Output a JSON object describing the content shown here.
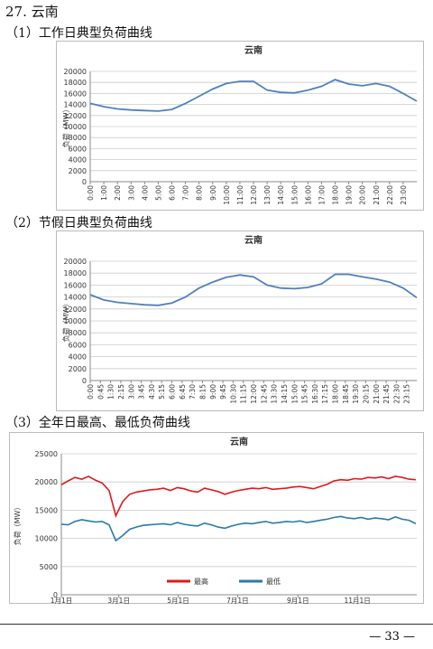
{
  "heading": "27. 云南",
  "captions": [
    "（1）工作日典型负荷曲线",
    "（2）节假日典型负荷曲线",
    "（3）全年日最高、最低负荷曲线"
  ],
  "page_number": "— 33 —",
  "chart_data": [
    {
      "type": "line",
      "title": "云南",
      "ylabel": "负荷（MW）",
      "x": [
        0,
        1,
        2,
        3,
        4,
        5,
        6,
        7,
        8,
        9,
        10,
        11,
        12,
        13,
        14,
        15,
        16,
        17,
        18,
        19,
        20,
        21,
        22,
        23,
        24
      ],
      "series": [
        {
          "color": "#4f81bd",
          "values": [
            14200,
            13600,
            13200,
            13000,
            12900,
            12800,
            13100,
            14200,
            15500,
            16800,
            17800,
            18200,
            18200,
            16600,
            16200,
            16100,
            16600,
            17300,
            18500,
            17700,
            17400,
            17800,
            17300,
            16000,
            14600
          ]
        }
      ],
      "xlim": [
        0,
        24
      ],
      "ylim": [
        0,
        20000
      ],
      "yticks": [
        0,
        2000,
        4000,
        6000,
        8000,
        10000,
        12000,
        14000,
        16000,
        18000,
        20000
      ],
      "xticks": [
        {
          "value": 0,
          "label": "0:00"
        },
        {
          "value": 1,
          "label": "1:00"
        },
        {
          "value": 2,
          "label": "2:00"
        },
        {
          "value": 3,
          "label": "3:00"
        },
        {
          "value": 4,
          "label": "4:00"
        },
        {
          "value": 5,
          "label": "5:00"
        },
        {
          "value": 6,
          "label": "6:00"
        },
        {
          "value": 7,
          "label": "7:00"
        },
        {
          "value": 8,
          "label": "8:00"
        },
        {
          "value": 9,
          "label": "9:00"
        },
        {
          "value": 10,
          "label": "10:00"
        },
        {
          "value": 11,
          "label": "11:00"
        },
        {
          "value": 12,
          "label": "12:00"
        },
        {
          "value": 13,
          "label": "13:00"
        },
        {
          "value": 14,
          "label": "14:00"
        },
        {
          "value": 15,
          "label": "15:00"
        },
        {
          "value": 16,
          "label": "16:00"
        },
        {
          "value": 17,
          "label": "17:00"
        },
        {
          "value": 18,
          "label": "18:00"
        },
        {
          "value": 19,
          "label": "19:00"
        },
        {
          "value": 20,
          "label": "20:00"
        },
        {
          "value": 21,
          "label": "21:00"
        },
        {
          "value": 22,
          "label": "22:00"
        },
        {
          "value": 23,
          "label": "23:00"
        }
      ],
      "grid": true
    },
    {
      "type": "line",
      "title": "云南",
      "ylabel": "负荷（MW）",
      "x": [
        0,
        1,
        2,
        3,
        4,
        5,
        6,
        7,
        8,
        9,
        10,
        11,
        12,
        13,
        14,
        15,
        16,
        17,
        18,
        19,
        20,
        21,
        22,
        23,
        24
      ],
      "series": [
        {
          "color": "#4f81bd",
          "values": [
            14400,
            13500,
            13100,
            12900,
            12700,
            12600,
            13000,
            14000,
            15500,
            16500,
            17300,
            17700,
            17400,
            16000,
            15500,
            15400,
            15600,
            16200,
            17800,
            17800,
            17400,
            17000,
            16500,
            15500,
            13900
          ]
        }
      ],
      "xlim": [
        0,
        24
      ],
      "ylim": [
        0,
        20000
      ],
      "yticks": [
        0,
        2000,
        4000,
        6000,
        8000,
        10000,
        12000,
        14000,
        16000,
        18000,
        20000
      ],
      "xticks": [
        {
          "value": 0,
          "label": "0:00"
        },
        {
          "value": 0.75,
          "label": "0:45"
        },
        {
          "value": 1.5,
          "label": "1:30"
        },
        {
          "value": 2.25,
          "label": "2:15"
        },
        {
          "value": 3,
          "label": "3:00"
        },
        {
          "value": 3.75,
          "label": "3:45"
        },
        {
          "value": 4.5,
          "label": "4:30"
        },
        {
          "value": 5.25,
          "label": "5:15"
        },
        {
          "value": 6,
          "label": "6:00"
        },
        {
          "value": 6.75,
          "label": "6:45"
        },
        {
          "value": 7.5,
          "label": "7:30"
        },
        {
          "value": 8.25,
          "label": "8:15"
        },
        {
          "value": 9,
          "label": "9:00"
        },
        {
          "value": 9.75,
          "label": "9:45"
        },
        {
          "value": 10.5,
          "label": "10:30"
        },
        {
          "value": 11.25,
          "label": "11:15"
        },
        {
          "value": 12,
          "label": "12:00"
        },
        {
          "value": 12.75,
          "label": "12:45"
        },
        {
          "value": 13.5,
          "label": "13:30"
        },
        {
          "value": 14.25,
          "label": "14:15"
        },
        {
          "value": 15,
          "label": "15:00"
        },
        {
          "value": 15.75,
          "label": "15:45"
        },
        {
          "value": 16.5,
          "label": "16:30"
        },
        {
          "value": 17.25,
          "label": "17:15"
        },
        {
          "value": 18,
          "label": "18:00"
        },
        {
          "value": 18.75,
          "label": "18:45"
        },
        {
          "value": 19.5,
          "label": "19:30"
        },
        {
          "value": 20.25,
          "label": "20:15"
        },
        {
          "value": 21,
          "label": "21:00"
        },
        {
          "value": 21.75,
          "label": "21:45"
        },
        {
          "value": 22.5,
          "label": "22:30"
        },
        {
          "value": 23.25,
          "label": "23:15"
        }
      ],
      "grid": true
    },
    {
      "type": "line",
      "title": "云南",
      "ylabel": "负荷（MW）",
      "x": [
        0,
        7,
        14,
        21,
        28,
        35,
        42,
        49,
        56,
        63,
        70,
        77,
        84,
        91,
        98,
        105,
        112,
        119,
        126,
        133,
        140,
        147,
        154,
        161,
        168,
        175,
        182,
        189,
        196,
        203,
        210,
        217,
        224,
        231,
        238,
        245,
        252,
        259,
        266,
        273,
        280,
        287,
        294,
        301,
        308,
        315,
        322,
        329,
        336,
        343,
        350,
        357,
        364
      ],
      "series": [
        {
          "name": "最高",
          "color": "#e0191d",
          "values": [
            19500,
            20200,
            20800,
            20500,
            21000,
            20300,
            19800,
            18500,
            14000,
            16500,
            17800,
            18200,
            18400,
            18600,
            18700,
            18900,
            18500,
            19000,
            18800,
            18400,
            18200,
            18900,
            18600,
            18300,
            17800,
            18200,
            18500,
            18700,
            18900,
            18800,
            19000,
            18700,
            18800,
            18900,
            19100,
            19200,
            19000,
            18800,
            19200,
            19600,
            20200,
            20400,
            20300,
            20600,
            20500,
            20800,
            20700,
            20900,
            20600,
            21000,
            20800,
            20500,
            20400
          ]
        },
        {
          "name": "最低",
          "color": "#2a7aaa",
          "values": [
            12500,
            12400,
            13000,
            13300,
            13100,
            12900,
            13000,
            12400,
            9600,
            10500,
            11600,
            12000,
            12300,
            12400,
            12500,
            12600,
            12400,
            12800,
            12500,
            12300,
            12200,
            12700,
            12400,
            12000,
            11800,
            12200,
            12500,
            12700,
            12600,
            12800,
            13000,
            12700,
            12800,
            13000,
            12900,
            13100,
            12800,
            13000,
            13200,
            13400,
            13700,
            13900,
            13600,
            13500,
            13700,
            13400,
            13600,
            13500,
            13300,
            13800,
            13400,
            13200,
            12600
          ]
        }
      ],
      "xlim": [
        0,
        365
      ],
      "ylim": [
        0,
        25000
      ],
      "yticks": [
        0,
        5000,
        10000,
        15000,
        20000,
        25000
      ],
      "xticks": [
        {
          "value": 0,
          "label": "1月1日"
        },
        {
          "value": 59,
          "label": "3月1日"
        },
        {
          "value": 120,
          "label": "5月1日"
        },
        {
          "value": 181,
          "label": "7月1日"
        },
        {
          "value": 243,
          "label": "9月1日"
        },
        {
          "value": 304,
          "label": "11月1日"
        }
      ],
      "grid": true,
      "legend": "bottom"
    }
  ]
}
